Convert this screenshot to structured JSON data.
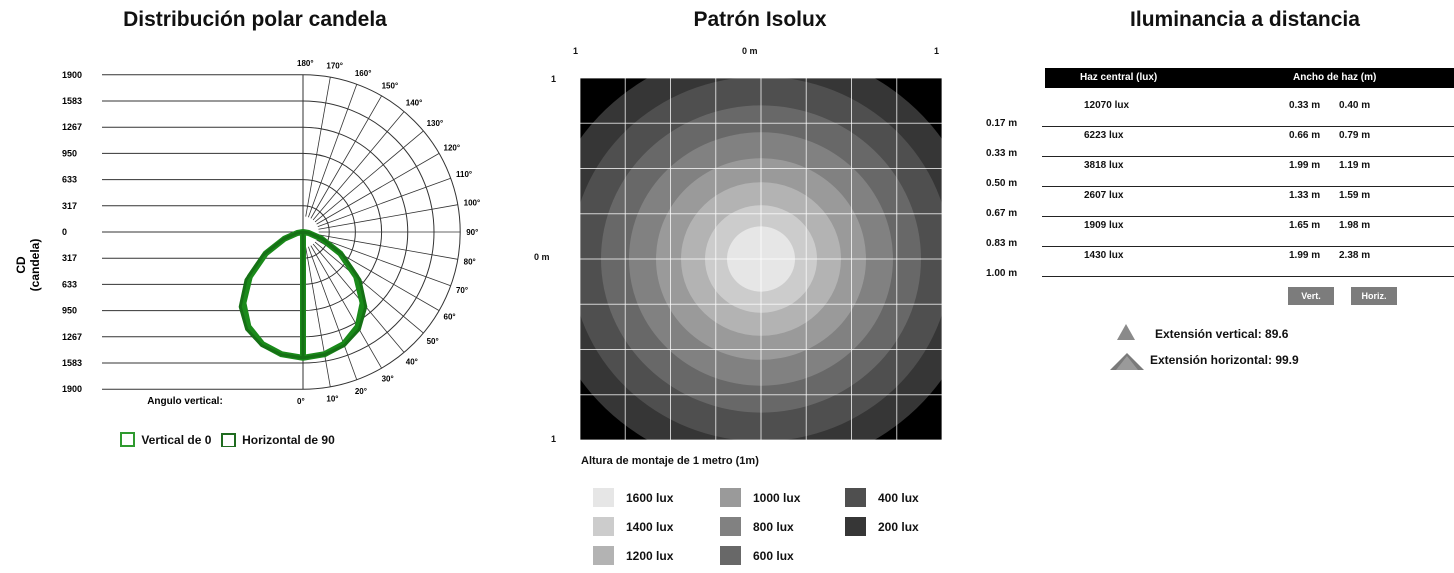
{
  "polar": {
    "title": "Distribución polar candela",
    "ylabel_line1": "CD",
    "ylabel_line2": "(candela)",
    "scale_labels": [
      "1900",
      "1583",
      "1267",
      "950",
      "633",
      "317",
      "0",
      "317",
      "633",
      "950",
      "1267",
      "1583",
      "1900"
    ],
    "angle_labels": [
      "180°",
      "170°",
      "160°",
      "150°",
      "140°",
      "130°",
      "120°",
      "110°",
      "100°",
      "90°",
      "80°",
      "70°",
      "60°",
      "50°",
      "40°",
      "30°",
      "20°",
      "10°",
      "0°"
    ],
    "vertical_angle_label": "Angulo vertical:",
    "legend": [
      {
        "label": "Vertical de 0",
        "color": "#2f9a2f"
      },
      {
        "label": "Horizontal de 90",
        "color": "#1f6b1f"
      }
    ],
    "curve_color": "#1a8a1a"
  },
  "isolux": {
    "title": "Patrón Isolux",
    "top_left": "1",
    "top_center": "0 m",
    "top_right": "1",
    "left_top": "1",
    "left_middle": "0 m",
    "left_bottom": "1",
    "mounting_label": "Altura de montaje de 1 metro (1m)",
    "legend": [
      {
        "label": "1600 lux",
        "color": "#e6e6e6"
      },
      {
        "label": "1400 lux",
        "color": "#cccccc"
      },
      {
        "label": "1200 lux",
        "color": "#b3b3b3"
      },
      {
        "label": "1000 lux",
        "color": "#9a9a9a"
      },
      {
        "label": "800 lux",
        "color": "#818181"
      },
      {
        "label": "600 lux",
        "color": "#686868"
      },
      {
        "label": "400 lux",
        "color": "#4f4f4f"
      },
      {
        "label": "200 lux",
        "color": "#363636"
      }
    ]
  },
  "illuminance": {
    "title": "Iluminancia a distancia",
    "col_center": "Haz central (lux)",
    "col_width": "Ancho de haz (m)",
    "distances": [
      "0.17 m",
      "0.33 m",
      "0.50 m",
      "0.67 m",
      "0.83 m",
      "1.00 m"
    ],
    "rows": [
      {
        "lux": "12070 lux",
        "w1": "0.33 m",
        "w2": "0.40 m"
      },
      {
        "lux": "6223 lux",
        "w1": "0.66 m",
        "w2": "0.79 m"
      },
      {
        "lux": "3818 lux",
        "w1": "1.99 m",
        "w2": "1.19 m"
      },
      {
        "lux": "2607 lux",
        "w1": "1.33 m",
        "w2": "1.59 m"
      },
      {
        "lux": "1909 lux",
        "w1": "1.65 m",
        "w2": "1.98 m"
      },
      {
        "lux": "1430 lux",
        "w1": "1.99 m",
        "w2": "2.38 m"
      }
    ],
    "btn_vert": "Vert.",
    "btn_horiz": "Horiz.",
    "spread_vertical": "Extensión vertical: 89.6",
    "spread_horizontal": "Extensión horizontal: 99.9"
  },
  "chart_data": [
    {
      "type": "polar",
      "title": "Distribución polar candela",
      "ylabel": "CD (candela)",
      "radial_ticks": [
        0,
        317,
        633,
        950,
        1267,
        1583,
        1900
      ],
      "angles_deg": [
        0,
        10,
        20,
        30,
        40,
        50,
        60,
        70,
        80,
        90
      ],
      "series": [
        {
          "name": "Vertical de 0",
          "values": [
            1520,
            1500,
            1440,
            1320,
            1120,
            840,
            520,
            240,
            70,
            0
          ]
        },
        {
          "name": "Horizontal de 90",
          "values": [
            1520,
            1505,
            1460,
            1360,
            1180,
            900,
            560,
            260,
            80,
            0
          ]
        }
      ]
    },
    {
      "type": "heatmap",
      "title": "Patrón Isolux",
      "levels_lux": [
        1600,
        1400,
        1200,
        1000,
        800,
        600,
        400,
        200
      ]
    },
    {
      "type": "table",
      "title": "Iluminancia a distancia",
      "columns": [
        "Haz central (lux)",
        "Ancho de haz (m)"
      ],
      "x": [
        "0.17 m",
        "0.33 m",
        "0.50 m",
        "0.67 m",
        "0.83 m",
        "1.00 m"
      ],
      "values": [
        12070,
        6223,
        3818,
        2607,
        1909,
        1430
      ]
    }
  ]
}
